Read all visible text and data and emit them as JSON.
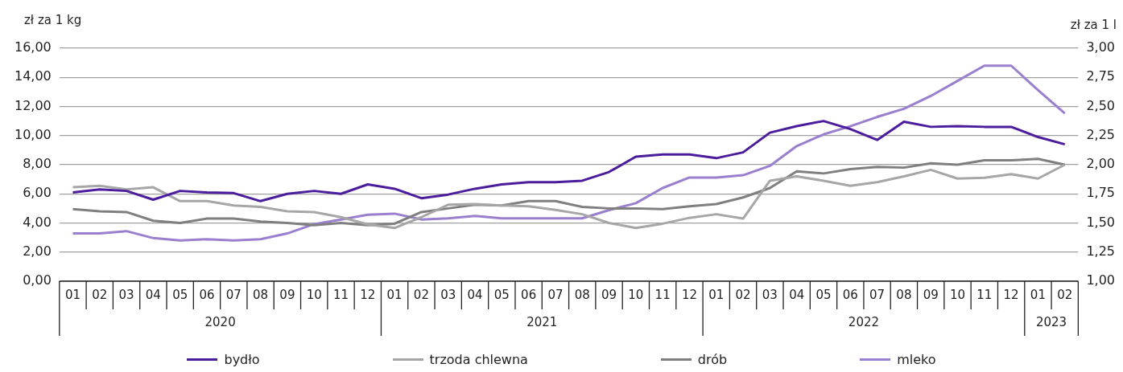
{
  "chart_data": {
    "type": "line",
    "ylabel": "zł za 1 kg",
    "y2label": "zł za 1 l",
    "categories": [
      "01",
      "02",
      "03",
      "04",
      "05",
      "06",
      "07",
      "08",
      "09",
      "10",
      "11",
      "12",
      "01",
      "02",
      "03",
      "04",
      "05",
      "06",
      "07",
      "08",
      "09",
      "10",
      "11",
      "12",
      "01",
      "02",
      "03",
      "04",
      "05",
      "06",
      "07",
      "08",
      "09",
      "10",
      "11",
      "12",
      "01",
      "02"
    ],
    "annotations": [
      "2020",
      "2021",
      "2022",
      "2023"
    ],
    "series": [
      {
        "name": "bydło",
        "color": "#4b1c9c",
        "values": [
          6.1,
          6.3,
          6.2,
          5.6,
          6.2,
          6.1,
          6.05,
          5.5,
          6.0,
          6.2,
          6.0,
          6.65,
          6.35,
          5.7,
          5.95,
          6.35,
          6.65,
          6.8,
          6.8,
          6.9,
          7.5,
          8.55,
          8.7,
          8.7,
          8.45,
          8.85,
          10.2,
          10.65,
          11.0,
          10.45,
          9.7,
          10.95,
          10.6,
          10.65,
          10.6,
          10.6,
          9.9,
          9.4
        ]
      },
      {
        "name": "trzoda chlewna",
        "color": "#a6a6a6",
        "values": [
          6.45,
          6.55,
          6.3,
          6.45,
          5.5,
          5.5,
          5.2,
          5.1,
          4.8,
          4.75,
          4.4,
          3.9,
          3.65,
          4.4,
          5.25,
          5.3,
          5.2,
          5.15,
          4.9,
          4.6,
          4.0,
          3.65,
          3.95,
          4.35,
          4.6,
          4.3,
          6.9,
          7.2,
          6.9,
          6.55,
          6.8,
          7.2,
          7.65,
          7.05,
          7.1,
          7.35,
          7.05,
          8.0
        ]
      },
      {
        "name": "drób",
        "color": "#7f7f7f",
        "values": [
          4.95,
          4.8,
          4.75,
          4.15,
          4.0,
          4.3,
          4.3,
          4.1,
          4.0,
          3.85,
          4.0,
          3.85,
          3.95,
          4.75,
          5.0,
          5.25,
          5.2,
          5.5,
          5.5,
          5.1,
          5.0,
          5.0,
          4.95,
          5.15,
          5.3,
          5.75,
          6.4,
          7.55,
          7.4,
          7.7,
          7.85,
          7.8,
          8.1,
          8.0,
          8.3,
          8.3,
          8.4,
          8.0
        ]
      },
      {
        "name": "mleko",
        "color": "#9b7fcf",
        "axis": "y2",
        "values": [
          1.41,
          1.41,
          1.43,
          1.37,
          1.35,
          1.36,
          1.35,
          1.36,
          1.41,
          1.49,
          1.53,
          1.57,
          1.58,
          1.53,
          1.54,
          1.56,
          1.54,
          1.54,
          1.54,
          1.54,
          1.61,
          1.67,
          1.8,
          1.89,
          1.89,
          1.91,
          1.99,
          2.16,
          2.26,
          2.33,
          2.41,
          2.48,
          2.59,
          2.72,
          2.85,
          2.85,
          2.64,
          2.44
        ]
      }
    ],
    "ylim": [
      0,
      16
    ],
    "yticks": [
      {
        "value": 0,
        "label": "0,00"
      },
      {
        "value": 2,
        "label": "2,00"
      },
      {
        "value": 4,
        "label": "4,00"
      },
      {
        "value": 6,
        "label": "6,00"
      },
      {
        "value": 8,
        "label": "8,00"
      },
      {
        "value": 10,
        "label": "10,00"
      },
      {
        "value": 12,
        "label": "12,00"
      },
      {
        "value": 14,
        "label": "14,00"
      },
      {
        "value": 16,
        "label": "16,00"
      }
    ],
    "y2lim": [
      1,
      3
    ],
    "y2ticks": [
      {
        "value": 1,
        "label": "1,00"
      },
      {
        "value": 1.25,
        "label": "1,25"
      },
      {
        "value": 1.5,
        "label": "1,50"
      },
      {
        "value": 1.75,
        "label": "1,75"
      },
      {
        "value": 2,
        "label": "2,00"
      },
      {
        "value": 2.25,
        "label": "2,25"
      },
      {
        "value": 2.5,
        "label": "2,50"
      },
      {
        "value": 2.75,
        "label": "2,75"
      },
      {
        "value": 3,
        "label": "3,00"
      }
    ],
    "grid": "y",
    "legend": "bottom",
    "marker": "none",
    "line_style": "solid"
  }
}
